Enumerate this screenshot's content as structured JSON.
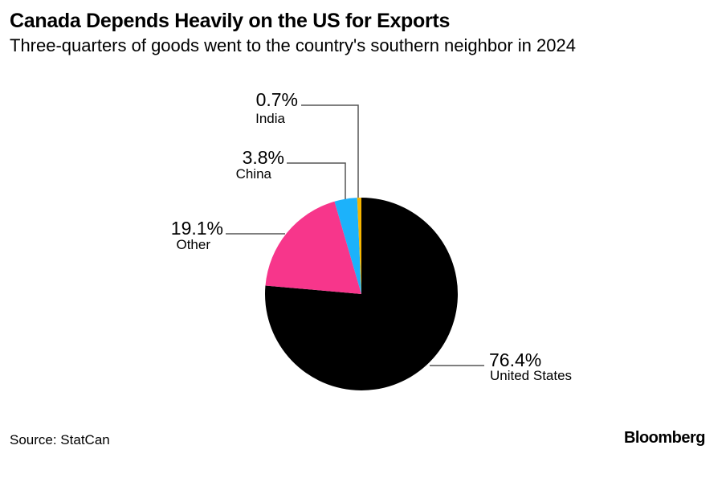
{
  "chart_data": {
    "type": "pie",
    "title": "Canada Depends Heavily on the US for Exports",
    "subtitle": "Three-quarters of goods went to the country's southern neighbor in 2024",
    "slices": [
      {
        "label": "United States",
        "value": 76.4,
        "value_label": "76.4%",
        "color": "#000000"
      },
      {
        "label": "Other",
        "value": 19.1,
        "value_label": "19.1%",
        "color": "#f7368b"
      },
      {
        "label": "China",
        "value": 3.8,
        "value_label": "3.8%",
        "color": "#1cb2fb"
      },
      {
        "label": "India",
        "value": 0.7,
        "value_label": "0.7%",
        "color": "#f5b400"
      }
    ],
    "start": "12 o'clock, clockwise"
  },
  "source": "Source: StatCan",
  "logo": "Bloomberg"
}
